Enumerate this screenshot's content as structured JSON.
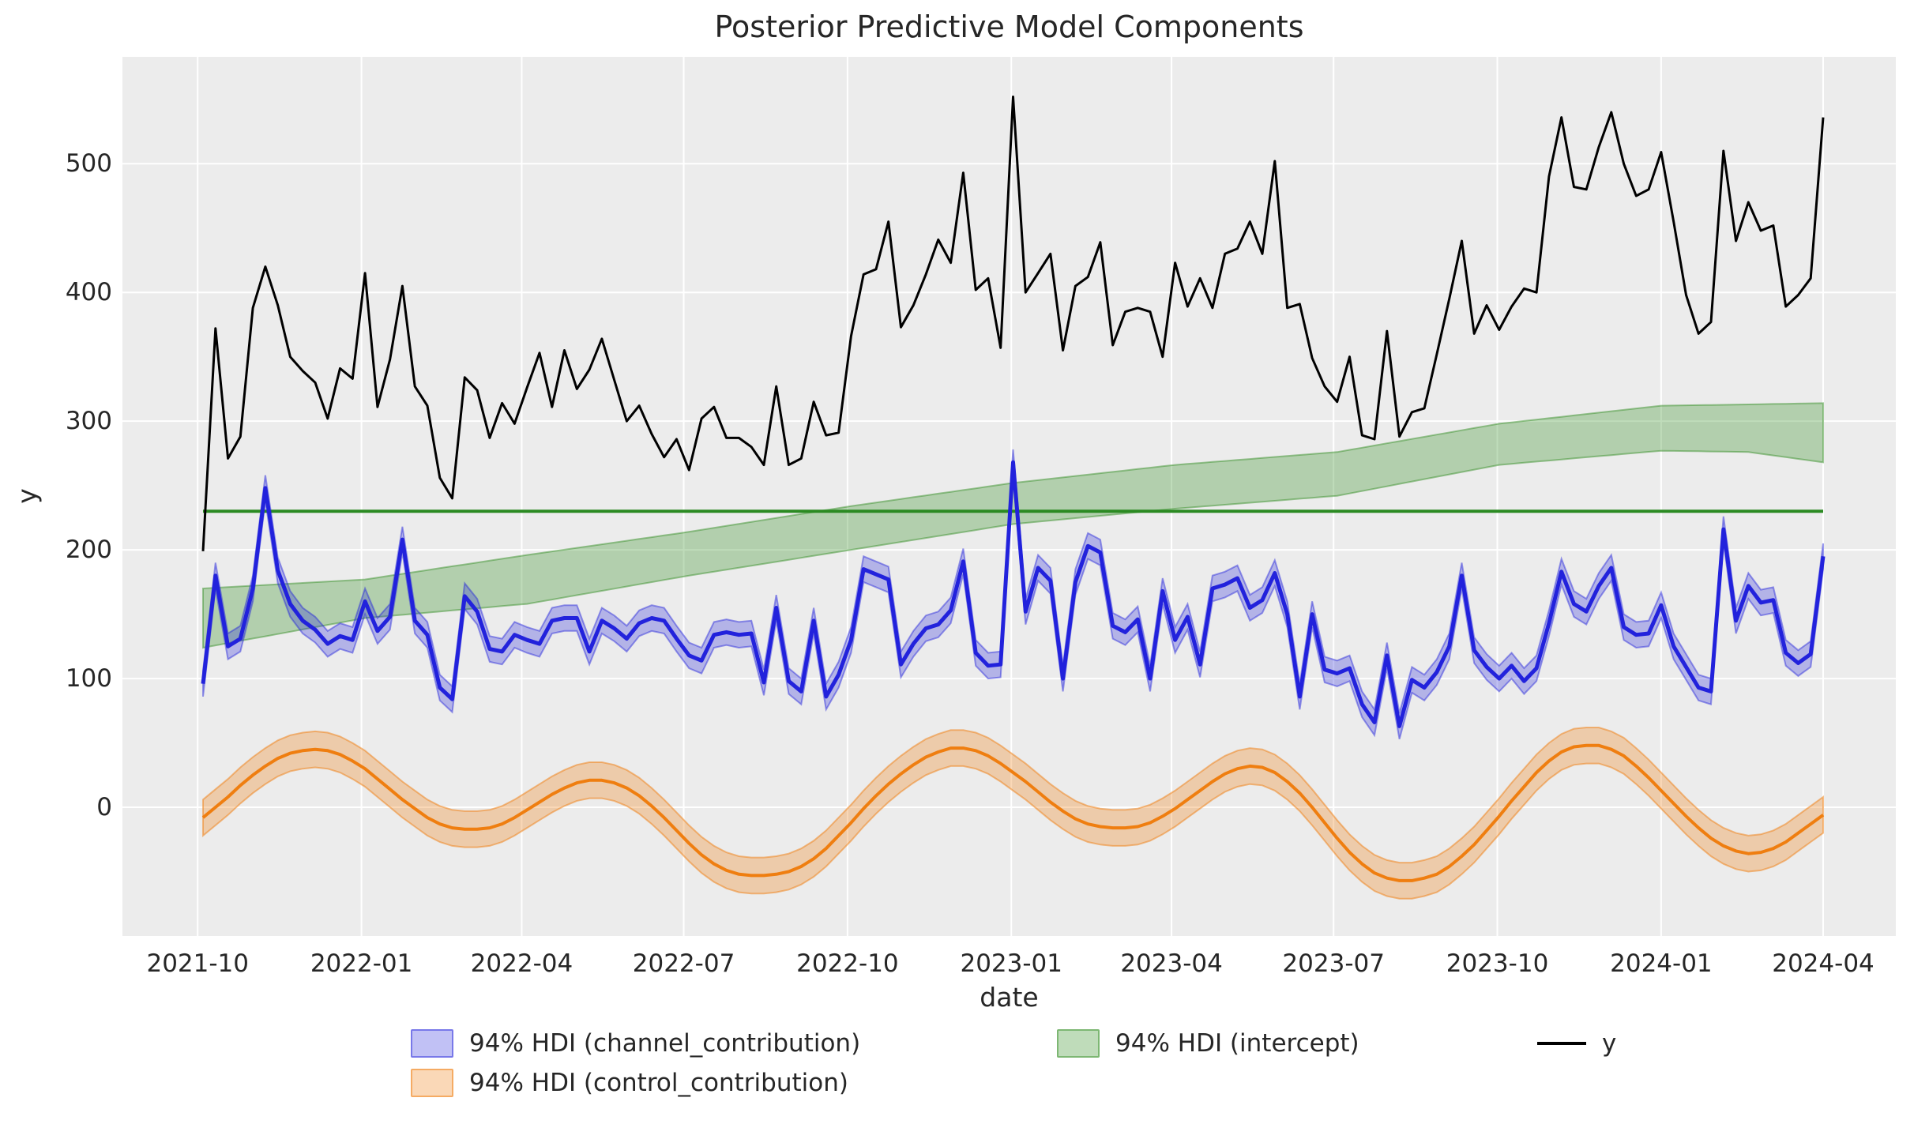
{
  "figure": {
    "title": "Posterior Predictive Model Components"
  },
  "axes": {
    "xlabel": "date",
    "ylabel": "y",
    "x_tick_labels": [
      "2021-10",
      "2022-01",
      "2022-04",
      "2022-07",
      "2022-10",
      "2023-01",
      "2023-04",
      "2023-07",
      "2023-10",
      "2024-01",
      "2024-04"
    ],
    "y_tick_labels": [
      "0",
      "100",
      "200",
      "300",
      "400",
      "500"
    ]
  },
  "legend": {
    "items": [
      {
        "label": "94% HDI (channel_contribution)",
        "swatch": "channel"
      },
      {
        "label": "94% HDI (intercept)",
        "swatch": "intercept"
      },
      {
        "label": "y",
        "swatch": "y"
      },
      {
        "label": "94% HDI (control_contribution)",
        "swatch": "control"
      }
    ]
  },
  "colors": {
    "plot_bg": "#ECECEC",
    "grid": "#FFFFFF",
    "text": "#262626",
    "y_line": "#000000",
    "channel_line": "#2222DC",
    "channel_band_fill": "rgba(34,34,220,0.28)",
    "channel_band_edge": "rgba(34,34,220,0.45)",
    "control_line": "#EF7E10",
    "control_band_fill": "rgba(239,126,16,0.30)",
    "control_band_edge": "rgba(239,126,16,0.50)",
    "intercept_line": "#2B8A22",
    "intercept_band_fill": "rgba(44,138,28,0.30)",
    "intercept_band_edge": "rgba(44,138,28,0.45)"
  },
  "chart_data": {
    "type": "line",
    "title": "Posterior Predictive Model Components",
    "xlabel": "date",
    "ylabel": "y",
    "x_start_date": "2021-10-04",
    "x_frequency": "weekly",
    "n_points": 131,
    "x_tick_labels": [
      "2021-10",
      "2022-01",
      "2022-04",
      "2022-07",
      "2022-10",
      "2023-01",
      "2023-04",
      "2023-07",
      "2023-10",
      "2024-01",
      "2024-04"
    ],
    "y_ticks": [
      0,
      100,
      200,
      300,
      400,
      500
    ],
    "ylim": [
      -100,
      583
    ],
    "grid": true,
    "legend_position": "bottom",
    "series": [
      {
        "name": "y",
        "kind": "line",
        "values": [
          199,
          372,
          271,
          288,
          388,
          420,
          390,
          350,
          339,
          330,
          302,
          341,
          333,
          415,
          311,
          348,
          405,
          327,
          312,
          256,
          240,
          334,
          324,
          287,
          314,
          298,
          326,
          353,
          311,
          355,
          325,
          340,
          364,
          332,
          300,
          312,
          290,
          272,
          286,
          262,
          302,
          311,
          287,
          287,
          280,
          266,
          327,
          266,
          271,
          315,
          289,
          291,
          366,
          414,
          418,
          455,
          373,
          390,
          414,
          441,
          423,
          493,
          402,
          411,
          357,
          552,
          400,
          415,
          430,
          355,
          405,
          412,
          439,
          359,
          385,
          388,
          385,
          350,
          423,
          389,
          411,
          388,
          430,
          434,
          455,
          430,
          502,
          388,
          391,
          349,
          327,
          315,
          350,
          289,
          286,
          370,
          288,
          307,
          310,
          352,
          395,
          440,
          368,
          390,
          371,
          389,
          403,
          400,
          490,
          536,
          482,
          480,
          513,
          540,
          500,
          475,
          480,
          509,
          455,
          398,
          368,
          377,
          510,
          440,
          470,
          448,
          452,
          389,
          398,
          411,
          536
        ]
      },
      {
        "name": "channel_contribution",
        "kind": "line_with_hdi",
        "hdi_label": "94% HDI (channel_contribution)",
        "hdi_halfwidth": 10,
        "mean": [
          96,
          180,
          125,
          131,
          170,
          248,
          184,
          158,
          145,
          138,
          127,
          133,
          130,
          160,
          137,
          148,
          208,
          145,
          134,
          93,
          84,
          164,
          152,
          123,
          121,
          134,
          130,
          127,
          145,
          147,
          147,
          121,
          145,
          139,
          131,
          143,
          147,
          145,
          131,
          118,
          114,
          134,
          136,
          134,
          135,
          97,
          155,
          98,
          90,
          145,
          86,
          103,
          130,
          185,
          181,
          177,
          111,
          127,
          139,
          142,
          153,
          191,
          120,
          110,
          111,
          268,
          152,
          186,
          176,
          100,
          175,
          203,
          198,
          141,
          136,
          146,
          100,
          168,
          130,
          148,
          111,
          170,
          173,
          178,
          155,
          161,
          182,
          150,
          86,
          150,
          107,
          104,
          108,
          80,
          66,
          118,
          63,
          99,
          93,
          105,
          125,
          180,
          122,
          109,
          100,
          110,
          98,
          108,
          143,
          183,
          158,
          152,
          172,
          186,
          140,
          134,
          135,
          157,
          125,
          109,
          93,
          90,
          216,
          145,
          172,
          159,
          161,
          120,
          112,
          119,
          195
        ]
      },
      {
        "name": "control_contribution",
        "kind": "line_with_hdi",
        "hdi_label": "94% HDI (control_contribution)",
        "hdi_halfwidth": 14,
        "mean": [
          -8,
          0,
          8,
          17,
          25,
          32,
          38,
          42,
          44,
          45,
          44,
          41,
          36,
          30,
          22,
          14,
          6,
          -1,
          -8,
          -13,
          -16,
          -17,
          -17,
          -16,
          -13,
          -8,
          -2,
          4,
          10,
          15,
          19,
          21,
          21,
          19,
          15,
          9,
          1,
          -8,
          -18,
          -28,
          -37,
          -44,
          -49,
          -52,
          -53,
          -53,
          -52,
          -50,
          -46,
          -40,
          -32,
          -22,
          -12,
          -1,
          9,
          18,
          26,
          33,
          39,
          43,
          46,
          46,
          44,
          40,
          34,
          27,
          20,
          12,
          4,
          -3,
          -9,
          -13,
          -15,
          -16,
          -16,
          -15,
          -12,
          -7,
          -1,
          6,
          13,
          20,
          26,
          30,
          32,
          31,
          27,
          20,
          11,
          0,
          -12,
          -24,
          -35,
          -44,
          -51,
          -55,
          -57,
          -57,
          -55,
          -52,
          -46,
          -38,
          -29,
          -18,
          -7,
          5,
          16,
          27,
          36,
          43,
          47,
          48,
          48,
          45,
          40,
          32,
          23,
          13,
          3,
          -7,
          -16,
          -24,
          -30,
          -34,
          -36,
          -35,
          -32,
          -27,
          -20,
          -13,
          -6
        ]
      },
      {
        "name": "intercept",
        "kind": "hline_with_hdi",
        "hdi_label": "94% HDI (intercept)",
        "line_value": 230,
        "hdi_anchors": {
          "week_index": [
            0,
            13,
            26,
            39,
            52,
            65,
            78,
            91,
            104,
            117,
            124,
            130
          ],
          "lower": [
            124,
            147,
            158,
            180,
            200,
            220,
            232,
            242,
            266,
            277,
            276,
            268
          ],
          "upper": [
            170,
            177,
            196,
            214,
            234,
            252,
            266,
            276,
            298,
            312,
            313,
            314
          ]
        }
      }
    ]
  }
}
